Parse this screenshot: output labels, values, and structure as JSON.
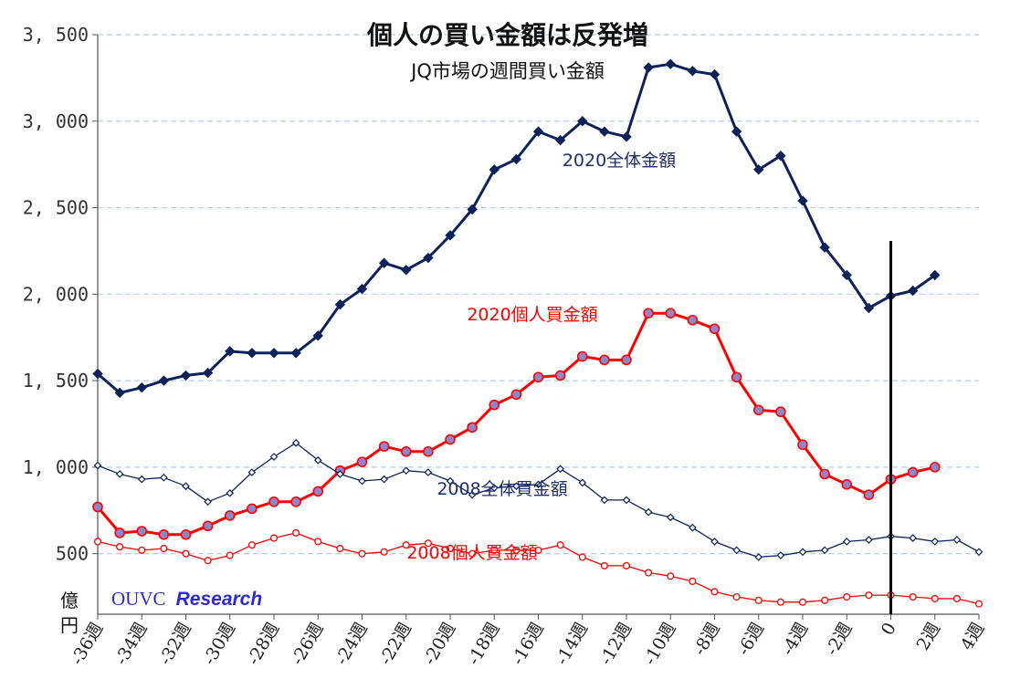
{
  "chart_data": {
    "type": "line",
    "title": "個人の買い金額は反発増",
    "subtitle": "JQ市場の週間買い金額",
    "yunit": [
      "億",
      "円"
    ],
    "credit": {
      "name": "OUVC",
      "suffix": "Research"
    },
    "ylim": [
      150,
      3500
    ],
    "yticks": [
      {
        "value": 500,
        "label": "500"
      },
      {
        "value": 1000,
        "label": "1, 000"
      },
      {
        "value": 1500,
        "label": "1, 500"
      },
      {
        "value": 2000,
        "label": "2, 000"
      },
      {
        "value": 2500,
        "label": "2, 500"
      },
      {
        "value": 3000,
        "label": "3, 000"
      },
      {
        "value": 3500,
        "label": "3, 500"
      }
    ],
    "xlim": [
      -36,
      4
    ],
    "xticks": [
      "-36週",
      "-34週",
      "-32週",
      "-30週",
      "-28週",
      "-26週",
      "-24週",
      "-22週",
      "-20週",
      "-18週",
      "-16週",
      "-14週",
      "-12週",
      "-10週",
      "-8週",
      "-6週",
      "-4週",
      "-2週",
      "0",
      "2週",
      "4週"
    ],
    "xtick_values": [
      -36,
      -34,
      -32,
      -30,
      -28,
      -26,
      -24,
      -22,
      -20,
      -18,
      -16,
      -14,
      -12,
      -10,
      -8,
      -6,
      -4,
      -2,
      0,
      2,
      4
    ],
    "vline_x": 0,
    "grid": true,
    "series": [
      {
        "name": "2020全体金額",
        "color": "#0d2259",
        "marker": "diamond",
        "x": [
          -36,
          -35,
          -34,
          -33,
          -32,
          -31,
          -30,
          -29,
          -28,
          -27,
          -26,
          -25,
          -24,
          -23,
          -22,
          -21,
          -20,
          -19,
          -18,
          -17,
          -16,
          -15,
          -14,
          -13,
          -12,
          -11,
          -10,
          -9,
          -8,
          -7,
          -6,
          -5,
          -4,
          -3,
          -2,
          -1,
          0,
          1,
          2
        ],
        "y": [
          1540,
          1430,
          1460,
          1500,
          1530,
          1545,
          1670,
          1660,
          1660,
          1660,
          1760,
          1940,
          2030,
          2180,
          2140,
          2210,
          2340,
          2490,
          2720,
          2780,
          2940,
          2890,
          3000,
          2940,
          2910,
          3310,
          3330,
          3290,
          3270,
          2940,
          2720,
          2800,
          2540,
          2270,
          2110,
          1920,
          1990,
          2020,
          2110
        ]
      },
      {
        "name": "2020個人買金額",
        "color": "#ff0000",
        "marker": "circle",
        "x": [
          -36,
          -35,
          -34,
          -33,
          -32,
          -31,
          -30,
          -29,
          -28,
          -27,
          -26,
          -25,
          -24,
          -23,
          -22,
          -21,
          -20,
          -19,
          -18,
          -17,
          -16,
          -15,
          -14,
          -13,
          -12,
          -11,
          -10,
          -9,
          -8,
          -7,
          -6,
          -5,
          -4,
          -3,
          -2,
          -1,
          0,
          1,
          2
        ],
        "y": [
          770,
          620,
          630,
          610,
          610,
          660,
          720,
          760,
          800,
          800,
          860,
          980,
          1030,
          1120,
          1090,
          1090,
          1160,
          1230,
          1360,
          1420,
          1520,
          1530,
          1640,
          1620,
          1620,
          1890,
          1890,
          1850,
          1800,
          1520,
          1330,
          1320,
          1130,
          960,
          900,
          840,
          930,
          970,
          1000
        ]
      },
      {
        "name": "2008全体買金額",
        "color": "#0d2259",
        "marker": "diamond-open",
        "x": [
          -36,
          -35,
          -34,
          -33,
          -32,
          -31,
          -30,
          -29,
          -28,
          -27,
          -26,
          -25,
          -24,
          -23,
          -22,
          -21,
          -20,
          -19,
          -18,
          -17,
          -16,
          -15,
          -14,
          -13,
          -12,
          -11,
          -10,
          -9,
          -8,
          -7,
          -6,
          -5,
          -4,
          -3,
          -2,
          -1,
          0,
          1,
          2,
          3,
          4
        ],
        "y": [
          1010,
          960,
          930,
          940,
          890,
          800,
          850,
          970,
          1060,
          1140,
          1040,
          960,
          920,
          930,
          980,
          970,
          920,
          840,
          880,
          890,
          900,
          990,
          910,
          810,
          810,
          740,
          710,
          650,
          570,
          520,
          480,
          490,
          510,
          520,
          570,
          580,
          600,
          590,
          570,
          580,
          510
        ]
      },
      {
        "name": "2008個人買金額",
        "color": "#ff0000",
        "marker": "circle-open",
        "x": [
          -36,
          -35,
          -34,
          -33,
          -32,
          -31,
          -30,
          -29,
          -28,
          -27,
          -26,
          -25,
          -24,
          -23,
          -22,
          -21,
          -20,
          -19,
          -18,
          -17,
          -16,
          -15,
          -14,
          -13,
          -12,
          -11,
          -10,
          -9,
          -8,
          -7,
          -6,
          -5,
          -4,
          -3,
          -2,
          -1,
          0,
          1,
          2,
          3,
          4
        ],
        "y": [
          570,
          540,
          520,
          530,
          500,
          460,
          490,
          550,
          590,
          620,
          570,
          530,
          500,
          510,
          550,
          560,
          530,
          500,
          520,
          520,
          520,
          550,
          480,
          430,
          430,
          390,
          370,
          340,
          280,
          250,
          230,
          220,
          220,
          230,
          250,
          260,
          260,
          250,
          240,
          240,
          210
        ]
      }
    ]
  }
}
